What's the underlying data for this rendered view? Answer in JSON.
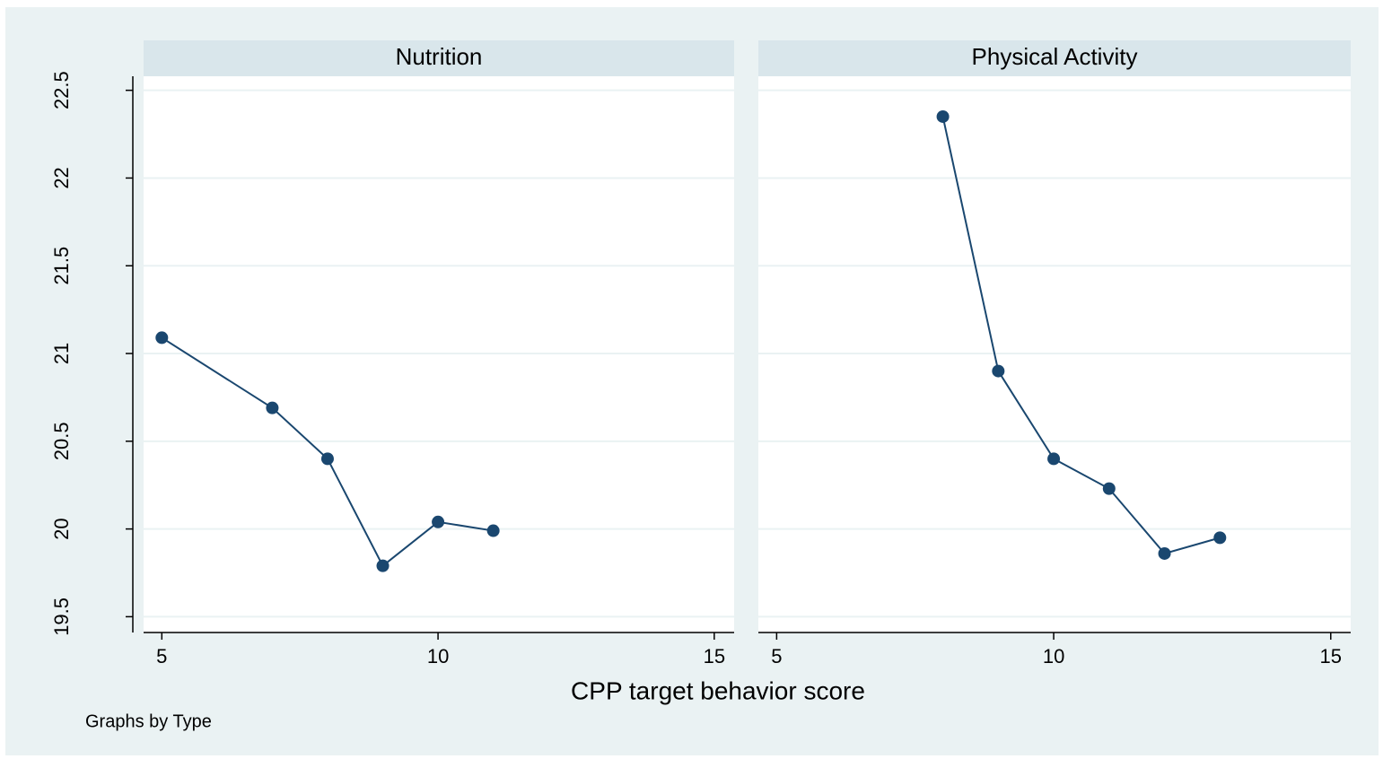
{
  "chart_data": {
    "type": "line",
    "xlabel": "CPP target behavior score",
    "note": "Graphs by Type",
    "color": "#1a476f",
    "grid": true,
    "xlim": [
      4.67,
      15.36
    ],
    "xticks": [
      5,
      10,
      15
    ],
    "ylim": [
      19.41,
      22.58
    ],
    "yticks": [
      19.5,
      20,
      20.5,
      21,
      21.5,
      22,
      22.5
    ],
    "panels": [
      {
        "title": "Nutrition",
        "x": [
          5,
          7,
          8,
          9,
          10,
          11
        ],
        "values": [
          21.09,
          20.69,
          20.4,
          19.79,
          20.04,
          19.99
        ]
      },
      {
        "title": "Physical Activity",
        "x": [
          8,
          9,
          10,
          11,
          12,
          13
        ],
        "values": [
          22.35,
          20.9,
          20.4,
          20.23,
          19.86,
          19.95
        ]
      }
    ]
  }
}
